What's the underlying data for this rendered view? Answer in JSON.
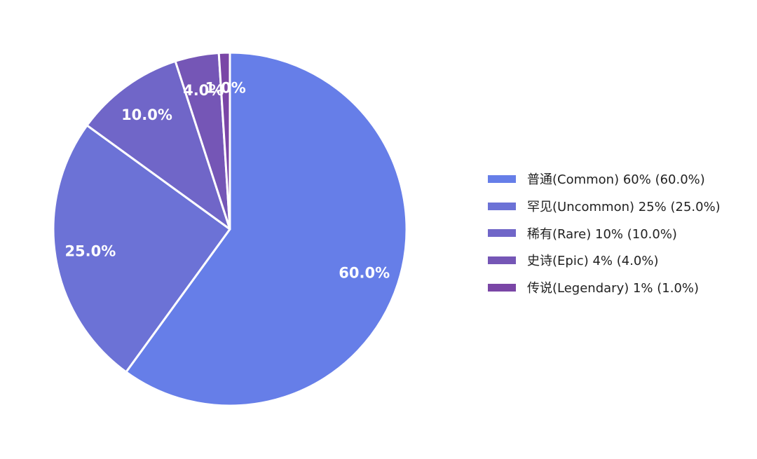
{
  "chart_data": {
    "type": "pie",
    "title": "",
    "start_angle": "top (12 o'clock), clockwise",
    "legend_position": "right",
    "slices": [
      {
        "name": "普通(Common)",
        "value": 60,
        "value_label": "60%",
        "percent_label": "60.0%",
        "color": "#667ee8"
      },
      {
        "name": "罕见(Uncommon)",
        "value": 25,
        "value_label": "25%",
        "percent_label": "25.0%",
        "color": "#6c72d6"
      },
      {
        "name": "稀有(Rare)",
        "value": 10,
        "value_label": "10%",
        "percent_label": "10.0%",
        "color": "#7066c8"
      },
      {
        "name": "史诗(Epic)",
        "value": 4,
        "value_label": "4%",
        "percent_label": "4.0%",
        "color": "#7556b6"
      },
      {
        "name": "传说(Legendary)",
        "value": 1,
        "value_label": "1%",
        "percent_label": "1.0%",
        "color": "#7a46a6"
      }
    ]
  },
  "legend": {
    "items": [
      {
        "label": "普通(Common) 60% (60.0%)",
        "color": "#667ee8"
      },
      {
        "label": "罕见(Uncommon) 25% (25.0%)",
        "color": "#6c72d6"
      },
      {
        "label": "稀有(Rare) 10% (10.0%)",
        "color": "#7066c8"
      },
      {
        "label": "史诗(Epic) 4% (4.0%)",
        "color": "#7556b6"
      },
      {
        "label": "传说(Legendary) 1% (1.0%)",
        "color": "#7a46a6"
      }
    ]
  }
}
